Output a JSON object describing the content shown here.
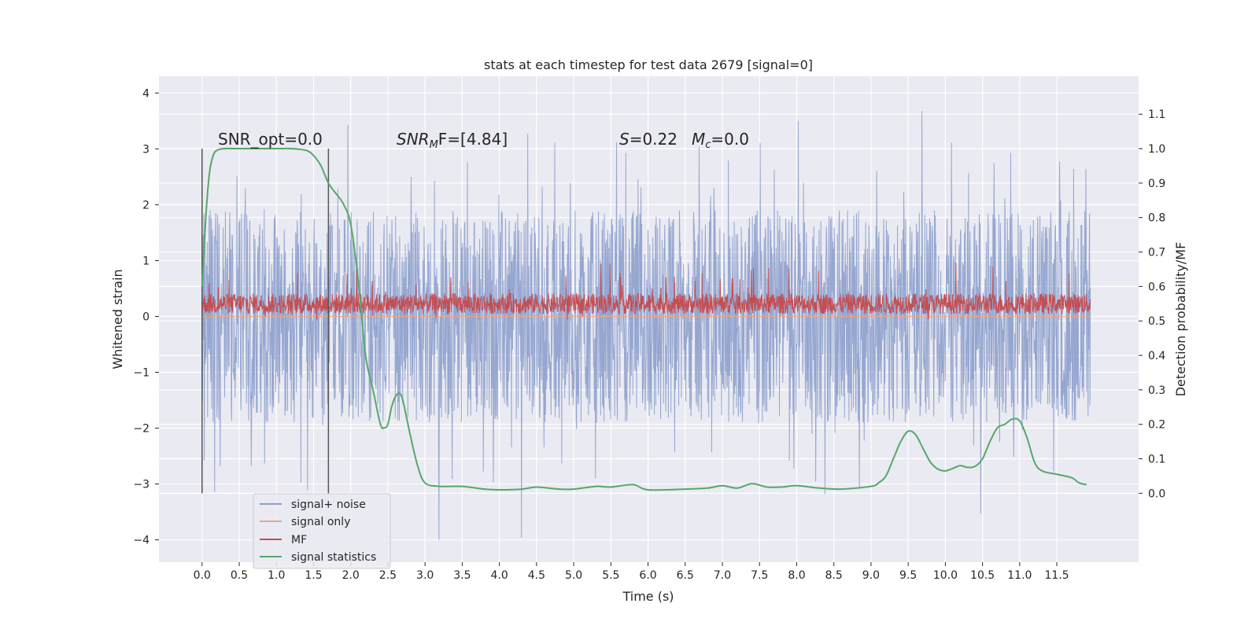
{
  "chart_data": {
    "type": "line",
    "title": "stats at each timestep for test data 2679 [signal=0]",
    "xlabel": "Time (s)",
    "ylabel": "Whitened strain",
    "y2label": "Detection probability/MF",
    "xlim": [
      -0.58,
      12.6
    ],
    "ylim": [
      -4.4,
      4.3
    ],
    "y2lim": [
      -0.2,
      1.21
    ],
    "x_ticks": [
      "0.0",
      "0.5",
      "1.0",
      "1.5",
      "2.0",
      "2.5",
      "3.0",
      "3.5",
      "4.0",
      "4.5",
      "5.0",
      "5.5",
      "6.0",
      "6.5",
      "7.0",
      "7.5",
      "8.0",
      "8.5",
      "9.0",
      "9.5",
      "10.0",
      "10.5",
      "11.0",
      "11.5"
    ],
    "y_ticks": [
      "4",
      "3",
      "2",
      "1",
      "0",
      "−1",
      "−2",
      "−3",
      "−4"
    ],
    "y2_ticks": [
      "1.1",
      "1.0",
      "0.9",
      "0.8",
      "0.7",
      "0.6",
      "0.5",
      "0.4",
      "0.3",
      "0.2",
      "0.1",
      "0.0"
    ],
    "grid": true,
    "legend_position": "lower-left",
    "annotations": {
      "snr_opt": "SNR_opt=0.0",
      "snr_mf_prefix": "SNR",
      "snr_mf_sub": "M",
      "snr_mf_suffix": "F=[4.84]",
      "s_prefix": "S",
      "s_value": "=0.22",
      "mc_prefix": "M",
      "mc_sub": "c",
      "mc_value": "=0.0"
    },
    "vertical_lines_x": [
      0.0,
      1.7
    ],
    "series": [
      {
        "name": "signal+ noise",
        "color": "#8c9fcc",
        "style": "noise",
        "x_range": [
          0.0,
          11.95
        ],
        "typical_range": [
          -1.9,
          1.9
        ],
        "extreme_range": [
          -4.1,
          3.9
        ]
      },
      {
        "name": "signal only",
        "color": "#e8a88a",
        "style": "flat",
        "value": 0
      },
      {
        "name": "MF",
        "color": "#c44e52",
        "style": "noise",
        "axis": "y2",
        "x_range": [
          0.0,
          11.95
        ],
        "typical_range": [
          0.52,
          0.58
        ],
        "extreme_range": [
          0.5,
          0.67
        ]
      },
      {
        "name": "signal statistics",
        "color": "#55a868",
        "axis": "y2",
        "x": [
          0.0,
          0.05,
          0.1,
          0.15,
          0.2,
          0.3,
          0.5,
          0.8,
          1.0,
          1.2,
          1.4,
          1.5,
          1.6,
          1.7,
          1.8,
          1.9,
          2.0,
          2.1,
          2.2,
          2.3,
          2.4,
          2.45,
          2.5,
          2.55,
          2.6,
          2.65,
          2.7,
          2.8,
          2.9,
          3.0,
          3.2,
          3.5,
          3.8,
          4.0,
          4.3,
          4.5,
          4.8,
          5.0,
          5.3,
          5.5,
          5.8,
          6.0,
          6.5,
          6.8,
          7.0,
          7.2,
          7.4,
          7.6,
          7.8,
          8.0,
          8.3,
          8.6,
          9.0,
          9.1,
          9.2,
          9.3,
          9.4,
          9.5,
          9.6,
          9.7,
          9.8,
          9.9,
          10.0,
          10.1,
          10.2,
          10.3,
          10.4,
          10.5,
          10.6,
          10.7,
          10.8,
          10.9,
          11.0,
          11.1,
          11.2,
          11.3,
          11.5,
          11.7,
          11.8,
          11.9
        ],
        "y": [
          0.6,
          0.8,
          0.93,
          0.98,
          0.995,
          1.0,
          1.0,
          1.0,
          1.0,
          1.0,
          0.995,
          0.98,
          0.95,
          0.9,
          0.87,
          0.84,
          0.78,
          0.62,
          0.4,
          0.3,
          0.2,
          0.19,
          0.2,
          0.25,
          0.28,
          0.29,
          0.27,
          0.17,
          0.08,
          0.03,
          0.02,
          0.02,
          0.012,
          0.01,
          0.012,
          0.018,
          0.012,
          0.012,
          0.02,
          0.018,
          0.025,
          0.01,
          0.012,
          0.015,
          0.022,
          0.015,
          0.028,
          0.018,
          0.018,
          0.022,
          0.015,
          0.012,
          0.02,
          0.03,
          0.05,
          0.1,
          0.15,
          0.18,
          0.17,
          0.13,
          0.09,
          0.07,
          0.065,
          0.072,
          0.08,
          0.075,
          0.078,
          0.1,
          0.15,
          0.19,
          0.2,
          0.215,
          0.21,
          0.16,
          0.09,
          0.065,
          0.055,
          0.045,
          0.03,
          0.025
        ]
      }
    ]
  }
}
